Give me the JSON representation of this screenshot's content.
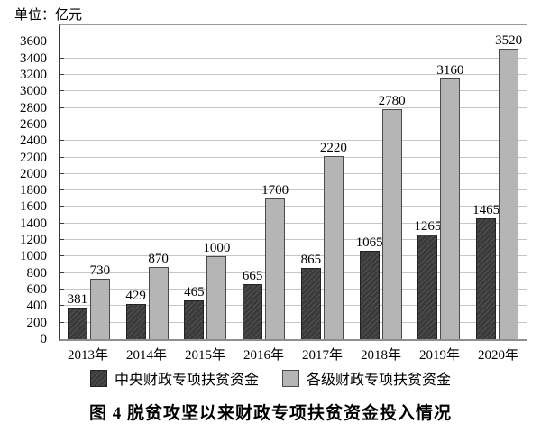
{
  "unit_label": "单位：亿元",
  "caption": "图 4  脱贫攻坚以来财政专项扶贫资金投入情况",
  "legend": {
    "items": [
      {
        "label": "中央财政专项扶贫资金",
        "swatch": "dark-hatched-square"
      },
      {
        "label": "各级财政专项扶贫资金",
        "swatch": "light-gray-square"
      }
    ]
  },
  "colors": {
    "bar_dark": "#3a3a3a",
    "bar_dark_hatch": "#535353",
    "bar_dark_border": "#222222",
    "bar_light": "#b5b5b5",
    "bar_light_border": "#4a4a4a",
    "gridline": "#c6c6c6",
    "axis": "#3a3a3a",
    "baseline": "#8e8e8e",
    "text": "#000000"
  },
  "chart_data": {
    "type": "bar",
    "categories": [
      "2013年",
      "2014年",
      "2015年",
      "2016年",
      "2017年",
      "2018年",
      "2019年",
      "2020年"
    ],
    "series": [
      {
        "name": "中央财政专项扶贫资金",
        "values": [
          381,
          429,
          465,
          665,
          865,
          1065,
          1265,
          1465
        ]
      },
      {
        "name": "各级财政专项扶贫资金",
        "values": [
          730,
          870,
          1000,
          1700,
          2220,
          2780,
          3160,
          3520
        ]
      }
    ],
    "title": "图 4  脱贫攻坚以来财政专项扶贫资金投入情况",
    "xlabel": "",
    "ylabel": "单位：亿元",
    "ylim": [
      0,
      3800
    ],
    "ytick_step": 200,
    "ytick_label_max": 3600,
    "grid": true,
    "value_labels": true,
    "legend_position": "bottom"
  }
}
